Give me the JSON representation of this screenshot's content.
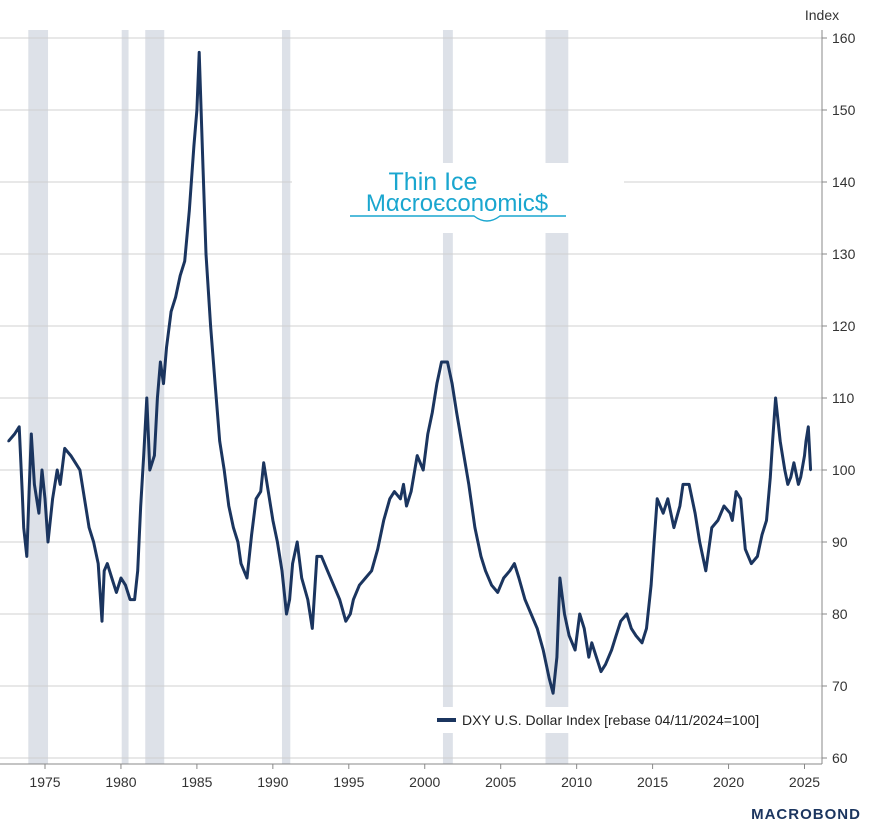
{
  "chart_data": {
    "type": "line",
    "title": "",
    "ylabel": "Index",
    "xlabel": "",
    "ylim": [
      60,
      160
    ],
    "xlim": [
      1972.5,
      2026.3
    ],
    "yticks": [
      60,
      70,
      80,
      90,
      100,
      110,
      120,
      130,
      140,
      150,
      160
    ],
    "xticks": [
      1975,
      1980,
      1985,
      1990,
      1995,
      2000,
      2005,
      2010,
      2015,
      2020,
      2025
    ],
    "grid": true,
    "legend_position": "bottom-right",
    "recessions": [
      {
        "start": 1973.9,
        "end": 1975.2
      },
      {
        "start": 1980.05,
        "end": 1980.5
      },
      {
        "start": 1981.6,
        "end": 1982.85
      },
      {
        "start": 1990.6,
        "end": 1991.15
      },
      {
        "start": 2001.2,
        "end": 2001.85
      },
      {
        "start": 2007.95,
        "end": 2009.45
      }
    ],
    "series": [
      {
        "name": "DXY U.S. Dollar Index [rebase 04/11/2024=100]",
        "color": "#1b355f",
        "x": [
          1972.6,
          1973.0,
          1973.3,
          1973.5,
          1973.6,
          1973.8,
          1973.95,
          1974.1,
          1974.3,
          1974.6,
          1974.8,
          1975.0,
          1975.2,
          1975.5,
          1975.8,
          1976.0,
          1976.3,
          1976.7,
          1977.0,
          1977.3,
          1977.6,
          1977.9,
          1978.2,
          1978.5,
          1978.75,
          1978.9,
          1979.1,
          1979.4,
          1979.7,
          1980.0,
          1980.3,
          1980.6,
          1980.9,
          1981.1,
          1981.3,
          1981.5,
          1981.7,
          1981.9,
          1982.2,
          1982.4,
          1982.6,
          1982.8,
          1983.0,
          1983.3,
          1983.6,
          1983.9,
          1984.2,
          1984.5,
          1984.8,
          1985.0,
          1985.15,
          1985.4,
          1985.6,
          1985.9,
          1986.2,
          1986.5,
          1986.8,
          1987.1,
          1987.4,
          1987.7,
          1987.9,
          1988.1,
          1988.3,
          1988.6,
          1988.9,
          1989.2,
          1989.4,
          1989.7,
          1990.0,
          1990.3,
          1990.6,
          1990.9,
          1991.1,
          1991.3,
          1991.6,
          1991.9,
          1992.3,
          1992.6,
          1992.9,
          1993.2,
          1993.6,
          1994.0,
          1994.4,
          1994.8,
          1995.1,
          1995.3,
          1995.7,
          1996.1,
          1996.5,
          1996.9,
          1997.3,
          1997.7,
          1998.0,
          1998.4,
          1998.6,
          1998.8,
          1999.1,
          1999.5,
          1999.9,
          2000.2,
          2000.5,
          2000.8,
          2001.1,
          2001.5,
          2001.8,
          2002.1,
          2002.5,
          2002.9,
          2003.3,
          2003.7,
          2004.0,
          2004.4,
          2004.8,
          2005.2,
          2005.6,
          2005.9,
          2006.2,
          2006.6,
          2007.0,
          2007.4,
          2007.8,
          2008.2,
          2008.45,
          2008.7,
          2008.9,
          2009.2,
          2009.5,
          2009.9,
          2010.2,
          2010.5,
          2010.8,
          2011.0,
          2011.3,
          2011.6,
          2011.9,
          2012.3,
          2012.6,
          2012.9,
          2013.3,
          2013.6,
          2013.9,
          2014.3,
          2014.6,
          2014.9,
          2015.1,
          2015.3,
          2015.7,
          2016.0,
          2016.4,
          2016.8,
          2017.0,
          2017.4,
          2017.8,
          2018.1,
          2018.5,
          2018.9,
          2019.3,
          2019.7,
          2020.1,
          2020.25,
          2020.5,
          2020.8,
          2021.1,
          2021.5,
          2021.9,
          2022.2,
          2022.5,
          2022.75,
          2022.9,
          2023.1,
          2023.4,
          2023.7,
          2023.9,
          2024.1,
          2024.3,
          2024.6,
          2024.75,
          2025.0,
          2025.1,
          2025.25,
          2025.4
        ],
        "values": [
          104,
          105,
          106,
          97,
          92,
          88,
          97,
          105,
          98,
          94,
          100,
          96,
          90,
          96,
          100,
          98,
          103,
          102,
          101,
          100,
          96,
          92,
          90,
          87,
          79,
          86,
          87,
          85,
          83,
          85,
          84,
          82,
          82,
          86,
          95,
          102,
          110,
          100,
          102,
          110,
          115,
          112,
          117,
          122,
          124,
          127,
          129,
          136,
          145,
          150,
          158,
          142,
          130,
          120,
          112,
          104,
          100,
          95,
          92,
          90,
          87,
          86,
          85,
          91,
          96,
          97,
          101,
          97,
          93,
          90,
          86,
          80,
          82,
          87,
          90,
          85,
          82,
          78,
          88,
          88,
          86,
          84,
          82,
          79,
          80,
          82,
          84,
          85,
          86,
          89,
          93,
          96,
          97,
          96,
          98,
          95,
          97,
          102,
          100,
          105,
          108,
          112,
          115,
          115,
          112,
          108,
          103,
          98,
          92,
          88,
          86,
          84,
          83,
          85,
          86,
          87,
          85,
          82,
          80,
          78,
          75,
          71,
          69,
          74,
          85,
          80,
          77,
          75,
          80,
          78,
          74,
          76,
          74,
          72,
          73,
          75,
          77,
          79,
          80,
          78,
          77,
          76,
          78,
          84,
          90,
          96,
          94,
          96,
          92,
          95,
          98,
          98,
          94,
          90,
          86,
          92,
          93,
          95,
          94,
          93,
          97,
          96,
          89,
          87,
          88,
          91,
          93,
          99,
          104,
          110,
          104,
          100,
          98,
          99,
          101,
          98,
          99,
          102,
          104,
          106,
          100
        ]
      }
    ]
  },
  "legend": {
    "label": "DXY U.S. Dollar Index [rebase 04/11/2024=100]"
  },
  "branding": {
    "overlay_line1": "Thin Ice",
    "overlay_line2": "Mαcroєconomic$",
    "source_logo": "MACROBOND"
  },
  "colors": {
    "line": "#1b355f",
    "recession": "#dde1e8",
    "grid": "#d0d0d0",
    "brand": "#1aa6cf"
  }
}
